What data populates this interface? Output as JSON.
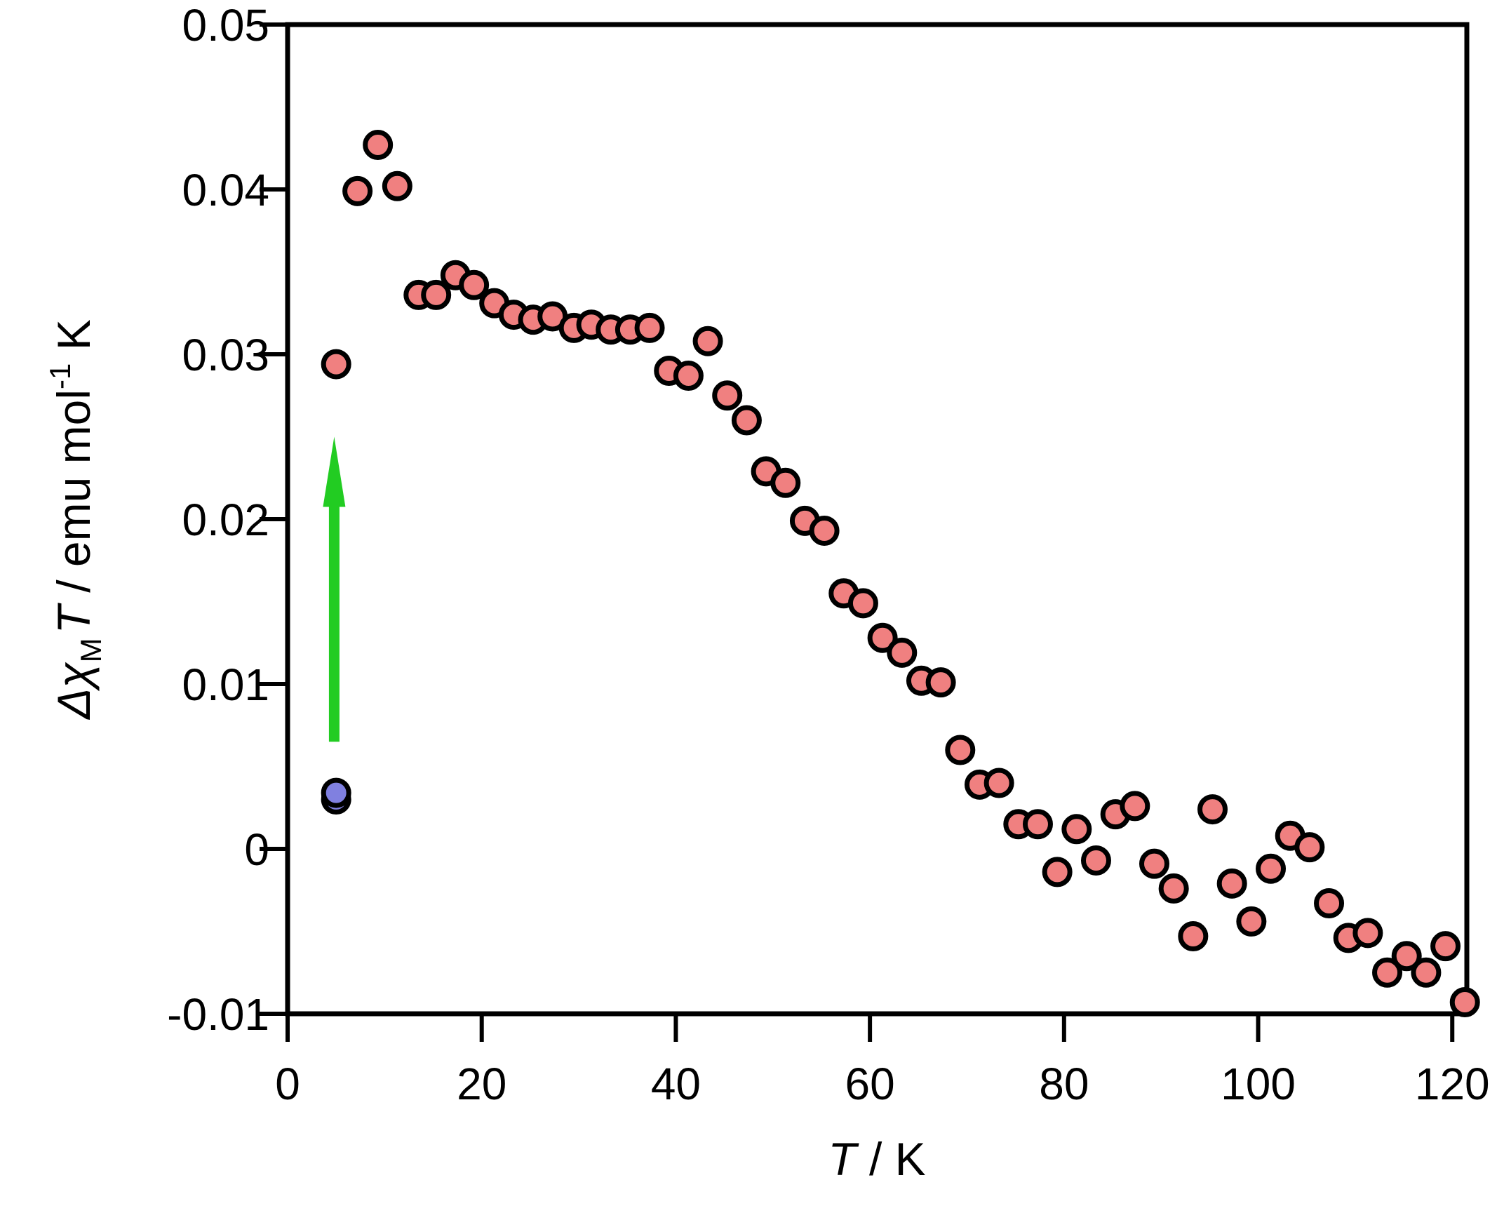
{
  "chart_data": {
    "type": "scatter",
    "xlim": [
      0,
      121.5
    ],
    "ylim": [
      -0.01,
      0.05
    ],
    "x_ticks": [
      0,
      20,
      40,
      60,
      80,
      100,
      120
    ],
    "x_tick_labels": [
      "0",
      "20",
      "40",
      "60",
      "80",
      "100",
      "120"
    ],
    "y_ticks": [
      -0.01,
      0,
      0.01,
      0.02,
      0.03,
      0.04,
      0.05
    ],
    "y_tick_labels": [
      "-0.01",
      "0",
      "0.01",
      "0.02",
      "0.03",
      "0.04",
      "0.05"
    ],
    "xlabel": {
      "var": "T",
      "rest": " / K"
    },
    "ylabel": {
      "delta": "Δ",
      "chi": "χ",
      "sub": "M",
      "var": "T",
      "rest": " / emu mol",
      "sup": "-1",
      "unit": " K"
    },
    "grid": false,
    "legend": "none",
    "series": [
      {
        "color": "#f08080",
        "edge_color": "#000000",
        "points": [
          [
            5,
            0.0294
          ],
          [
            7.2,
            0.0399
          ],
          [
            9.3,
            0.0427
          ],
          [
            11.3,
            0.0402
          ],
          [
            13.5,
            0.0336
          ],
          [
            15.3,
            0.0336
          ],
          [
            17.3,
            0.0348
          ],
          [
            19.2,
            0.0342
          ],
          [
            21.3,
            0.0331
          ],
          [
            23.3,
            0.0324
          ],
          [
            25.3,
            0.0321
          ],
          [
            27.3,
            0.0323
          ],
          [
            29.5,
            0.0316
          ],
          [
            31.3,
            0.0318
          ],
          [
            33.3,
            0.0315
          ],
          [
            35.3,
            0.0315
          ],
          [
            37.3,
            0.0316
          ],
          [
            39.3,
            0.029
          ],
          [
            41.3,
            0.0287
          ],
          [
            43.3,
            0.0308
          ],
          [
            45.3,
            0.0275
          ],
          [
            47.3,
            0.026
          ],
          [
            49.3,
            0.0229
          ],
          [
            51.3,
            0.0222
          ],
          [
            53.3,
            0.0199
          ],
          [
            55.3,
            0.0193
          ],
          [
            57.3,
            0.0155
          ],
          [
            59.3,
            0.0149
          ],
          [
            61.3,
            0.0128
          ],
          [
            63.3,
            0.0119
          ],
          [
            65.3,
            0.0102
          ],
          [
            67.3,
            0.0101
          ],
          [
            69.3,
            0.006
          ],
          [
            71.3,
            0.0039
          ],
          [
            73.3,
            0.004
          ],
          [
            75.3,
            0.0015
          ],
          [
            77.3,
            0.0015
          ],
          [
            79.3,
            -0.0014
          ],
          [
            81.3,
            0.0012
          ],
          [
            83.3,
            -0.0007
          ],
          [
            85.3,
            0.0021
          ],
          [
            87.3,
            0.0026
          ],
          [
            89.3,
            -0.0009
          ],
          [
            91.3,
            -0.0024
          ],
          [
            93.3,
            -0.0053
          ],
          [
            95.3,
            0.0024
          ],
          [
            97.3,
            -0.0021
          ],
          [
            99.3,
            -0.0044
          ],
          [
            101.3,
            -0.0012
          ],
          [
            103.3,
            0.0008
          ],
          [
            105.3,
            0.0001
          ],
          [
            107.3,
            -0.0033
          ],
          [
            109.3,
            -0.0054
          ],
          [
            111.3,
            -0.0051
          ],
          [
            113.3,
            -0.0075
          ],
          [
            115.3,
            -0.0065
          ],
          [
            117.3,
            -0.0075
          ],
          [
            119.3,
            -0.0059
          ],
          [
            121.3,
            -0.0093
          ]
        ]
      },
      {
        "color": "#8080e0",
        "edge_color": "#000000",
        "points": [
          [
            5,
            0.003
          ],
          [
            5,
            0.0034
          ]
        ]
      }
    ],
    "annotations": [
      {
        "type": "arrow",
        "color": "#22cc22",
        "direction": "up",
        "x": 4.8,
        "y_from": 0.0065,
        "y_to": 0.025
      }
    ]
  }
}
